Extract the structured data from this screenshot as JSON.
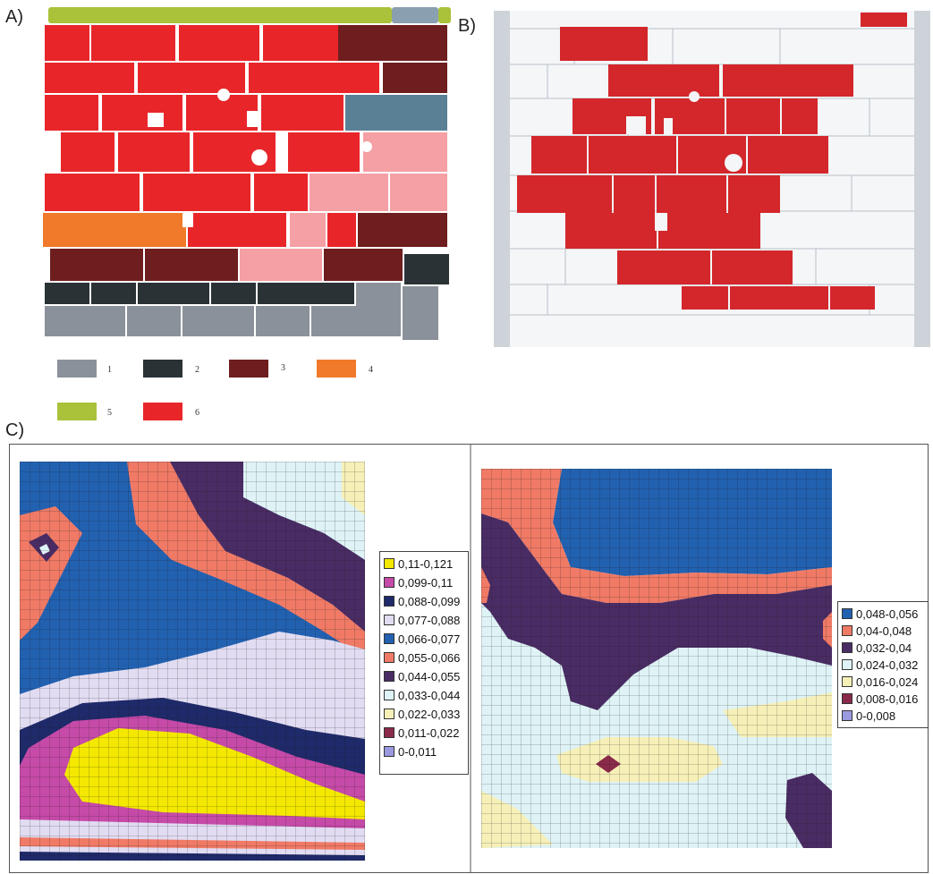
{
  "panels": {
    "a": {
      "label": "A)"
    },
    "b": {
      "label": "B)"
    },
    "c": {
      "label": "C)"
    }
  },
  "legend_a": [
    {
      "id": "1",
      "color": "#8a919a"
    },
    {
      "id": "2",
      "color": "#2a3236"
    },
    {
      "id": "3",
      "color": "#6e1e1e"
    },
    {
      "id": "4",
      "color": "#f07a2a"
    },
    {
      "id": "5",
      "color": "#a9c23a"
    },
    {
      "id": "6",
      "color": "#e8262a"
    }
  ],
  "legend_c_left": [
    {
      "label": "0,11-0,121",
      "color": "#f4e800"
    },
    {
      "label": "0,099-0,11",
      "color": "#c64aa8"
    },
    {
      "label": "0,088-0,099",
      "color": "#1f2a6a"
    },
    {
      "label": "0,077-0,088",
      "color": "#e2dcf2"
    },
    {
      "label": "0,066-0,077",
      "color": "#2261b0"
    },
    {
      "label": "0,055-0,066",
      "color": "#f07a66"
    },
    {
      "label": "0,044-0,055",
      "color": "#4a2c64"
    },
    {
      "label": "0,033-0,044",
      "color": "#dff3f6"
    },
    {
      "label": "0,022-0,033",
      "color": "#f6f0b8"
    },
    {
      "label": "0,011-0,022",
      "color": "#8a2a4a"
    },
    {
      "label": "0-0,011",
      "color": "#9a9ae0"
    }
  ],
  "legend_c_right": [
    {
      "label": "0,048-0,056",
      "color": "#2261b0"
    },
    {
      "label": "0,04-0,048",
      "color": "#f07a66"
    },
    {
      "label": "0,032-0,04",
      "color": "#4a2c64"
    },
    {
      "label": "0,024-0,032",
      "color": "#dff3f6"
    },
    {
      "label": "0,016-0,024",
      "color": "#f6f0b8"
    },
    {
      "label": "0,008-0,016",
      "color": "#8a2a4a"
    },
    {
      "label": "0-0,008",
      "color": "#9a9ae0"
    }
  ]
}
